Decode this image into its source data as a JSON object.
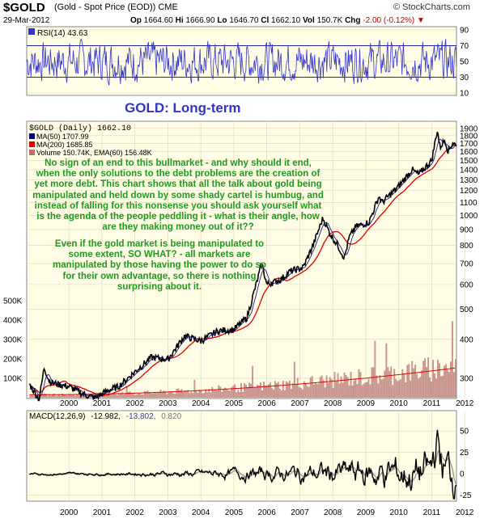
{
  "header": {
    "symbol": "$GOLD",
    "name": "(Gold - Spot Price (EOD))  CME",
    "source": "© StockCharts.com",
    "date": "29-Mar-2012",
    "open": "1664.60",
    "high": "1666.90",
    "low": "1646.70",
    "close": "1662.10",
    "volume": "150.7K",
    "change": "-2.00 (-0.12%)",
    "open_label": "Op",
    "high_label": "Hi",
    "low_label": "Lo",
    "close_label": "Cl",
    "volume_label": "Vol",
    "change_label": "Chg"
  },
  "rsi_panel": {
    "legend": "RSI(14) 43.63",
    "ticks": [
      "90",
      "70",
      "50",
      "30",
      "10"
    ]
  },
  "main_title": "GOLD: Long-term",
  "legend": {
    "price": "$GOLD (Daily) 1662.10",
    "ma50": "MA(50) 1707.99",
    "ma200": "MA(200) 1685.85",
    "volume": "Volume 150.74K, EMA(60) 156.48K"
  },
  "note1": "No sign of an end to this bullmarket - and why should it end, when the only solutions to the debt problems are the creation of yet more debt. This chart shows that all the talk about gold being manipulated and held down by some shady cartel is humbug, and instead of falling for this nonsense you should ask yourself what is the agenda of the people peddling it - what is their angle, how are they making money out of it??",
  "note2": "Even if the gold market is being manipulated to some extent, SO WHAT? - all markets are manipulated by those having the power to do so for their own advantage, so there is nothing surprising about it.",
  "price_ticks": [
    "1900",
    "1800",
    "1700",
    "1600",
    "1500",
    "1400",
    "1300",
    "1200",
    "1100",
    "1000",
    "900",
    "800",
    "700",
    "600",
    "500",
    "400",
    "300"
  ],
  "volume_ticks": [
    "500K",
    "400K",
    "300K",
    "200K",
    "100K"
  ],
  "years": [
    "2000",
    "2001",
    "2002",
    "2003",
    "2004",
    "2005",
    "2006",
    "2007",
    "2008",
    "2009",
    "2010",
    "2011",
    "2012"
  ],
  "macd_panel": {
    "legend_name": "MACD(12,26,9)",
    "legend_macd": "-12.982,",
    "legend_signal": "-13.802,",
    "legend_hist": "0.820",
    "ticks": [
      "50",
      "25",
      "0",
      "-25"
    ]
  },
  "colors": {
    "panel_bg": "#fffde5",
    "price": "#000000",
    "ma50": "#000080",
    "ma200": "#e00000",
    "volume": "#b87070",
    "rsi": "#3333cc",
    "note": "#1f9a1f"
  },
  "chart_data": [
    {
      "type": "line",
      "title": "RSI(14)",
      "ylim": [
        10,
        90
      ],
      "guides": [
        70,
        30
      ],
      "last_value": 43.63
    },
    {
      "type": "line",
      "title": "$GOLD (Daily)",
      "scale": "log",
      "ylim": [
        260,
        1920
      ],
      "x": [
        1999.3,
        1999.6,
        1999.75,
        1999.9,
        2000.0,
        2000.5,
        2001.0,
        2001.3,
        2001.7,
        2002.0,
        2002.5,
        2003.0,
        2003.5,
        2004.0,
        2004.5,
        2005.0,
        2005.5,
        2005.9,
        2006.35,
        2006.5,
        2006.9,
        2007.2,
        2007.6,
        2007.9,
        2008.2,
        2008.4,
        2008.65,
        2008.85,
        2009.0,
        2009.2,
        2009.6,
        2009.9,
        2010.0,
        2010.5,
        2010.9,
        2011.1,
        2011.5,
        2011.67,
        2011.75,
        2011.9,
        2012.0,
        2012.15,
        2012.24
      ],
      "series": [
        {
          "name": "$GOLD",
          "values": [
            287,
            257,
            325,
            295,
            290,
            282,
            265,
            260,
            275,
            282,
            315,
            350,
            345,
            410,
            395,
            425,
            430,
            470,
            700,
            600,
            620,
            660,
            680,
            800,
            980,
            880,
            800,
            730,
            850,
            920,
            950,
            1150,
            1100,
            1240,
            1400,
            1350,
            1500,
            1880,
            1650,
            1750,
            1600,
            1720,
            1662
          ]
        },
        {
          "name": "MA(50)",
          "last": 1707.99
        },
        {
          "name": "MA(200)",
          "last": 1685.85
        }
      ]
    },
    {
      "type": "bar",
      "title": "Volume",
      "ylim": [
        0,
        550000
      ],
      "last_value": 150740,
      "ema60": 156480
    },
    {
      "type": "line",
      "title": "MACD(12,26,9)",
      "ylim": [
        -30,
        70
      ],
      "series": [
        {
          "name": "MACD",
          "last": -12.982
        },
        {
          "name": "Signal",
          "last": -13.802
        },
        {
          "name": "Histogram",
          "last": 0.82
        }
      ]
    }
  ]
}
